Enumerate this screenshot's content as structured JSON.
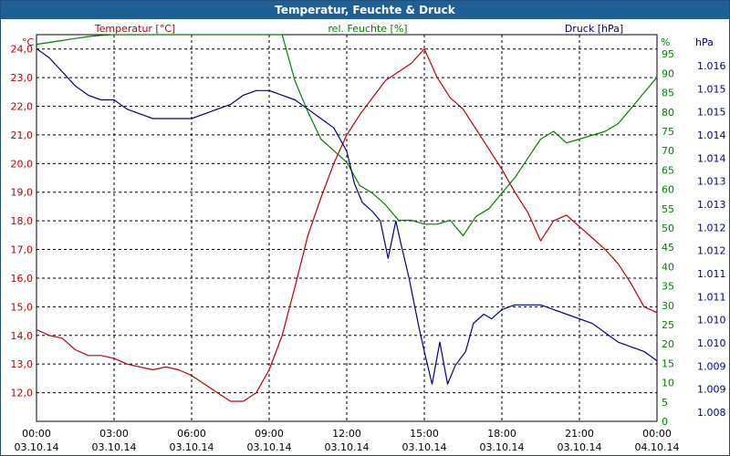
{
  "window": {
    "title": "Temperatur, Feuchte & Druck"
  },
  "chart_data": {
    "type": "line",
    "title": "Temperatur, Feuchte & Druck",
    "grid": true,
    "x": {
      "range_hours": [
        0,
        24
      ],
      "tick_hours": [
        0,
        3,
        6,
        9,
        12,
        15,
        18,
        21,
        24
      ],
      "tick_times": [
        "00:00",
        "03:00",
        "06:00",
        "09:00",
        "12:00",
        "15:00",
        "18:00",
        "21:00",
        "00:00"
      ],
      "tick_dates": [
        "03.10.14",
        "03.10.14",
        "03.10.14",
        "03.10.14",
        "03.10.14",
        "03.10.14",
        "03.10.14",
        "03.10.14",
        "04.10.14"
      ]
    },
    "axes": {
      "temperature": {
        "label": "Temperatur [°C]",
        "unit": "°C",
        "color": "#c00000",
        "range": [
          11.0,
          24.5
        ],
        "ticks": [
          12.0,
          13.0,
          14.0,
          15.0,
          16.0,
          17.0,
          18.0,
          19.0,
          20.0,
          21.0,
          22.0,
          23.0,
          24.0
        ],
        "tick_labels": [
          "12,0",
          "13,0",
          "14,0",
          "15,0",
          "16,0",
          "17,0",
          "18,0",
          "19,0",
          "20,0",
          "21,0",
          "22,0",
          "23,0",
          "24,0"
        ]
      },
      "humidity": {
        "label": "rel. Feuchte [%]",
        "unit": "%",
        "color": "#008000",
        "range": [
          0,
          100
        ],
        "ticks": [
          0,
          5,
          10,
          15,
          20,
          25,
          30,
          35,
          40,
          45,
          50,
          55,
          60,
          65,
          70,
          75,
          80,
          85,
          90,
          95
        ],
        "tick_labels": [
          "0",
          "5",
          "10",
          "15",
          "20",
          "25",
          "30",
          "35",
          "40",
          "45",
          "50",
          "55",
          "60",
          "65",
          "70",
          "75",
          "80",
          "85",
          "90",
          "95"
        ]
      },
      "pressure": {
        "label": "Druck [hPa]",
        "unit": "hPa",
        "color": "#00008b",
        "tick_labels": [
          "1.008",
          "1.009",
          "1.009",
          "1.010",
          "1.010",
          "1.011",
          "1.011",
          "1.012",
          "1.012",
          "1.013",
          "1.013",
          "1.014",
          "1.014",
          "1.015",
          "1.015",
          "1.016"
        ]
      }
    },
    "series": [
      {
        "name": "Temperatur [°C]",
        "axis": "temperature",
        "color": "#c00000",
        "x": [
          0,
          0.5,
          1,
          1.5,
          2,
          2.5,
          3,
          3.5,
          4,
          4.5,
          5,
          5.5,
          6,
          6.5,
          7,
          7.5,
          8,
          8.5,
          9,
          9.5,
          10,
          10.5,
          11,
          11.5,
          12,
          12.5,
          13,
          13.5,
          14,
          14.5,
          15,
          15.5,
          16,
          16.5,
          17,
          17.5,
          18,
          18.5,
          19,
          19.5,
          20,
          20.5,
          21,
          21.5,
          22,
          22.5,
          23,
          23.5,
          24
        ],
        "y": [
          14.2,
          14.0,
          13.9,
          13.5,
          13.3,
          13.3,
          13.2,
          13.0,
          12.9,
          12.8,
          12.9,
          12.8,
          12.6,
          12.3,
          12.0,
          11.7,
          11.7,
          12.0,
          12.8,
          14.0,
          15.7,
          17.5,
          18.8,
          20.0,
          21.0,
          21.7,
          22.3,
          22.9,
          23.2,
          23.5,
          24.0,
          23.0,
          22.3,
          21.9,
          21.2,
          20.5,
          19.8,
          19.0,
          18.3,
          17.3,
          18.0,
          18.2,
          17.8,
          17.4,
          17.0,
          16.5,
          15.8,
          15.0,
          14.8
        ]
      },
      {
        "name": "rel. Feuchte [%]",
        "axis": "humidity",
        "color": "#008000",
        "x": [
          0,
          0.5,
          1,
          1.5,
          2,
          2.5,
          3,
          3.5,
          4,
          4.5,
          5,
          5.5,
          6,
          6.5,
          7,
          7.5,
          8,
          8.5,
          9,
          9.5,
          10,
          10.5,
          11,
          11.5,
          12,
          12.5,
          13,
          13.5,
          14,
          14.5,
          15,
          15.5,
          16,
          16.5,
          17,
          17.5,
          18,
          18.5,
          19,
          19.5,
          20,
          20.5,
          21,
          21.5,
          22,
          22.5,
          23,
          23.5,
          24
        ],
        "y": [
          97.5,
          98,
          98.5,
          99,
          99.5,
          99.8,
          100,
          100,
          100,
          100,
          100,
          100,
          100,
          100,
          100,
          100,
          100,
          100,
          100,
          100,
          88,
          80,
          73,
          70,
          67,
          61,
          59,
          56,
          52,
          52,
          51,
          51,
          52,
          48,
          53,
          55,
          59,
          63,
          68,
          73,
          75,
          72,
          73,
          74,
          75,
          77,
          81,
          85,
          89
        ]
      },
      {
        "name": "Druck [hPa]",
        "axis": "pressure",
        "color": "#00008b",
        "x": [
          0,
          0.5,
          1,
          1.5,
          2,
          2.5,
          3,
          3.5,
          4,
          4.5,
          5,
          5.5,
          6,
          6.5,
          7,
          7.5,
          8,
          8.5,
          9,
          9.5,
          10,
          10.5,
          11,
          11.5,
          12,
          12.3,
          12.6,
          13,
          13.3,
          13.6,
          13.9,
          14.1,
          14.4,
          14.8,
          15.0,
          15.3,
          15.6,
          15.9,
          16.2,
          16.6,
          16.9,
          17.3,
          17.6,
          18.0,
          18.5,
          19.0,
          19.5,
          20.0,
          20.5,
          21,
          21.5,
          22,
          22.5,
          23,
          23.5,
          24
        ],
        "pixel_y_norm": null,
        "y": [
          1.016,
          1.0158,
          1.0155,
          1.0152,
          1.015,
          1.0149,
          1.0149,
          1.0147,
          1.0146,
          1.0145,
          1.0145,
          1.0145,
          1.0145,
          1.0146,
          1.0147,
          1.0148,
          1.015,
          1.0151,
          1.0151,
          1.015,
          1.0149,
          1.0147,
          1.0145,
          1.0143,
          1.0138,
          1.0131,
          1.0127,
          1.0125,
          1.0123,
          1.0115,
          1.0123,
          1.0118,
          1.0111,
          1.01,
          1.0095,
          1.0088,
          1.0097,
          1.0088,
          1.0092,
          1.0095,
          1.0101,
          1.0103,
          1.0102,
          1.0104,
          1.0105,
          1.0105,
          1.0105,
          1.0104,
          1.0103,
          1.0102,
          1.0101,
          1.0099,
          1.0097,
          1.0096,
          1.0095,
          1.0093
        ]
      }
    ]
  }
}
